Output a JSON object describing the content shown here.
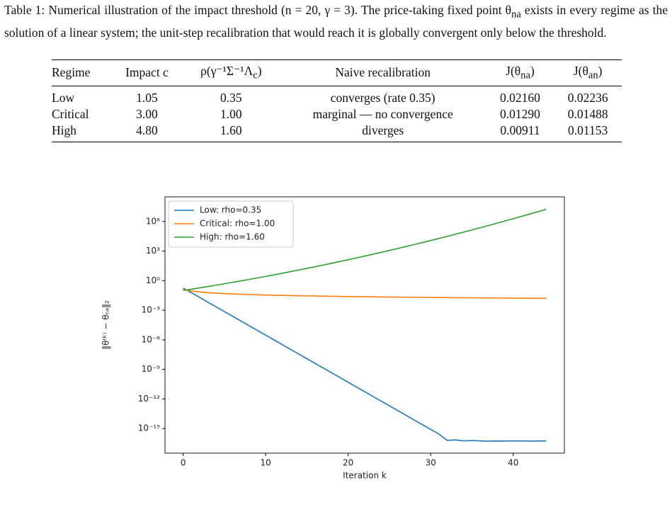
{
  "caption": {
    "before": "Table 1: Numerical illustration of the impact threshold (n = 20, γ = 3). The price-taking fixed point θ",
    "sub": "na",
    "after": " exists in every regime as the solution of a linear system; the unit-step recalibration that would reach it is globally convergent only below the threshold."
  },
  "table": {
    "header": [
      "Regime",
      "Impact c",
      {
        "text": "ρ(γ⁻¹Σ⁻¹Λ",
        "sub": "c",
        "tail": ")"
      },
      "Naive recalibration",
      {
        "text": "J(θ",
        "sub": "na",
        "tail": ")"
      },
      {
        "text": "J(θ",
        "sub": "an",
        "tail": ")"
      }
    ],
    "rows": [
      [
        "Low",
        "1.05",
        "0.35",
        "converges (rate 0.35)",
        "0.02160",
        "0.02236"
      ],
      [
        "Critical",
        "3.00",
        "1.00",
        "marginal — no convergence",
        "0.01290",
        "0.01488"
      ],
      [
        "High",
        "4.80",
        "1.60",
        "diverges",
        "0.00911",
        "0.01153"
      ]
    ]
  },
  "chart_data": {
    "type": "line",
    "x_label": "Iteration k",
    "y_label": "‖θ⁽ᵏ⁾ − θₙₐ‖₂",
    "x": [
      0,
      1,
      2,
      3,
      4,
      5,
      6,
      7,
      8,
      9,
      10,
      11,
      12,
      13,
      14,
      15,
      16,
      17,
      18,
      19,
      20,
      21,
      22,
      23,
      24,
      25,
      26,
      27,
      28,
      29,
      30,
      31,
      32,
      33,
      34,
      35,
      36,
      37,
      38,
      39,
      40,
      41,
      42,
      43,
      44
    ],
    "series": [
      {
        "name": "Low: rho=0.35",
        "color": "#1f77b4",
        "values": [
          0.178,
          0.059,
          0.0197,
          0.0065,
          0.00218,
          0.00072,
          0.000241,
          8e-05,
          2.67e-05,
          8.9e-06,
          2.95e-06,
          9.8e-07,
          3.27e-07,
          1.09e-07,
          3.61e-08,
          1.2e-08,
          4e-09,
          1.33e-09,
          4.43e-10,
          1.47e-10,
          4.9e-11,
          1.63e-11,
          5.4e-12,
          1.8e-12,
          6e-13,
          2e-13,
          6.6e-14,
          2.21e-14,
          7.3e-15,
          2.44e-15,
          8.1e-16,
          2.7e-16,
          6.3e-17,
          7e-17,
          5.5e-17,
          6e-17,
          5.5e-17,
          5.2e-17,
          5.4e-17,
          5.3e-17,
          5.6e-17,
          5.4e-17,
          5.3e-17,
          5.4e-17,
          5.4e-17
        ]
      },
      {
        "name": "Critical: rho=1.00",
        "color": "#ff7f0e",
        "values": [
          0.13,
          0.0888,
          0.0711,
          0.0607,
          0.0537,
          0.0485,
          0.0446,
          0.0414,
          0.0388,
          0.0366,
          0.0348,
          0.0332,
          0.0318,
          0.0305,
          0.0294,
          0.0284,
          0.0275,
          0.0266,
          0.0258,
          0.0251,
          0.0245,
          0.0239,
          0.0232,
          0.0227,
          0.0221,
          0.0216,
          0.0212,
          0.0208,
          0.0204,
          0.02,
          0.0196,
          0.0193,
          0.019,
          0.0187,
          0.0184,
          0.0181,
          0.0178,
          0.0176,
          0.0173,
          0.0171,
          0.0169,
          0.0166,
          0.0164,
          0.0162,
          0.016
        ]
      },
      {
        "name": "High: rho=1.60",
        "color": "#2ca02c",
        "values": [
          0.1,
          0.135,
          0.184,
          0.252,
          0.347,
          0.481,
          0.671,
          0.941,
          1.33,
          1.88,
          2.69,
          3.87,
          5.59,
          8.12,
          11.9,
          17.5,
          25.9,
          38.5,
          57.7,
          87.0,
          132,
          201,
          308,
          476,
          739,
          1155,
          1815,
          2868,
          4563,
          7299,
          11749,
          19025,
          30990,
          50781,
          83730,
          138870,
          231680,
          388800,
          656500,
          1115000,
          1905000,
          3276000,
          5665000,
          9856000,
          17250000
        ]
      }
    ],
    "xlim": [
      -2.2,
      46.2
    ],
    "xticks": [
      0,
      10,
      20,
      30,
      40
    ],
    "ylog": true,
    "ylim": [
      3.16e-18,
      316000000.0
    ],
    "yticks": [
      {
        "value": 1000000.0,
        "label": "10⁶"
      },
      {
        "value": 1000,
        "label": "10³"
      },
      {
        "value": 1,
        "label": "10⁰"
      },
      {
        "value": 0.001,
        "label": "10⁻³"
      },
      {
        "value": 1e-06,
        "label": "10⁻⁶"
      },
      {
        "value": 1e-09,
        "label": "10⁻⁹"
      },
      {
        "value": 1e-12,
        "label": "10⁻¹²"
      },
      {
        "value": 1e-15,
        "label": "10⁻¹⁵"
      }
    ],
    "legend": "upper left"
  }
}
